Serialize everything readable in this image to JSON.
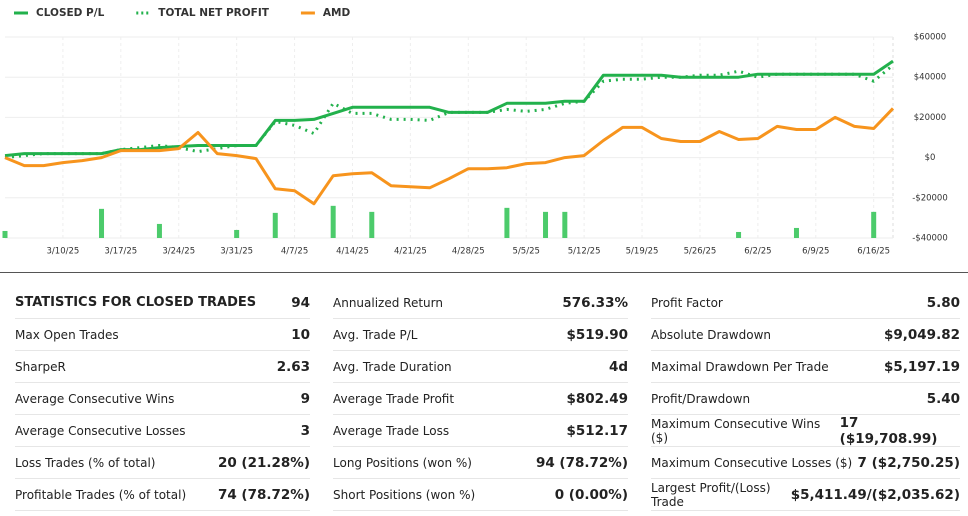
{
  "chart_data": {
    "type": "line",
    "categories": [
      null,
      null,
      null,
      "3/10/25",
      null,
      null,
      "3/17/25",
      null,
      null,
      "3/24/25",
      null,
      null,
      "3/31/25",
      null,
      null,
      "4/7/25",
      null,
      null,
      "4/14/25",
      null,
      null,
      "4/21/25",
      null,
      null,
      "4/28/25",
      null,
      null,
      "5/5/25",
      null,
      null,
      "5/12/25",
      null,
      null,
      "5/19/25",
      null,
      null,
      "5/26/25",
      null,
      null,
      "6/2/25",
      null,
      null,
      "6/9/25",
      null,
      null,
      "6/16/25",
      null
    ],
    "series": [
      {
        "name": "CLOSED P/L",
        "color": "#22b14c",
        "dash": "solid",
        "values": [
          1000,
          2000,
          2000,
          2000,
          2000,
          2000,
          4000,
          4000,
          5000,
          5500,
          6000,
          6000,
          6000,
          6000,
          18500,
          18500,
          19000,
          22000,
          25000,
          25000,
          25000,
          25000,
          25000,
          22500,
          22500,
          22500,
          27000,
          27000,
          27000,
          28000,
          28000,
          41000,
          41000,
          41000,
          41000,
          40000,
          40000,
          40000,
          40000,
          41500,
          41500,
          41500,
          41500,
          41500,
          41500,
          41500,
          48000
        ]
      },
      {
        "name": "TOTAL NET PROFIT",
        "color": "#22b14c",
        "dash": "dotted",
        "values": [
          0,
          1000,
          2000,
          2000,
          2000,
          2000,
          4000,
          5000,
          6000,
          5000,
          3000,
          4500,
          6000,
          6000,
          18000,
          16000,
          12000,
          27000,
          22000,
          22000,
          19000,
          19000,
          18500,
          22500,
          22500,
          22500,
          24000,
          23000,
          24000,
          27000,
          28000,
          38000,
          39000,
          39000,
          40000,
          40000,
          41000,
          41000,
          43000,
          40000,
          41500,
          41500,
          41500,
          41500,
          41500,
          38000,
          46000
        ]
      },
      {
        "name": "AMD",
        "color": "#f7941d",
        "dash": "solid",
        "values": [
          0,
          -4000,
          -4000,
          -2500,
          -1500,
          0,
          3500,
          3500,
          3500,
          4500,
          12500,
          2000,
          1000,
          -500,
          -15500,
          -16500,
          -23000,
          -9000,
          -8000,
          -7500,
          -14000,
          -14500,
          -15000,
          -10500,
          -5500,
          -5500,
          -5000,
          -3000,
          -2500,
          0,
          1000,
          8500,
          15000,
          15000,
          9500,
          8000,
          8000,
          13000,
          9000,
          9500,
          15500,
          14000,
          14000,
          20000,
          15500,
          14500,
          24500
        ]
      },
      {
        "type": "bar",
        "color": "#4ccb6b",
        "values": [
          -36500,
          null,
          null,
          null,
          null,
          -25500,
          null,
          null,
          -33000,
          null,
          null,
          null,
          -36000,
          null,
          -27500,
          null,
          null,
          -24000,
          null,
          -27000,
          null,
          null,
          null,
          null,
          null,
          null,
          -25000,
          null,
          -27000,
          -27000,
          null,
          null,
          null,
          null,
          null,
          null,
          null,
          null,
          -37000,
          null,
          null,
          -35000,
          null,
          null,
          null,
          -27000,
          null
        ]
      }
    ],
    "ylim": [
      -40000,
      60000
    ],
    "yticks": [
      {
        "value": -40000,
        "label": "-$40000"
      },
      {
        "value": -20000,
        "label": "-$20000"
      },
      {
        "value": 0,
        "label": "$0"
      },
      {
        "value": 20000,
        "label": "$20000"
      },
      {
        "value": 40000,
        "label": "$40000"
      },
      {
        "value": 60000,
        "label": "$60000"
      }
    ],
    "grid": true
  },
  "stats": {
    "columns": [
      {
        "rows": [
          [
            "STATISTICS FOR CLOSED TRADES",
            "94"
          ],
          [
            "Max Open Trades",
            "10"
          ],
          [
            "SharpeR",
            "2.63"
          ],
          [
            "Average Consecutive Wins",
            "9"
          ],
          [
            "Average Consecutive Losses",
            "3"
          ],
          [
            "Loss Trades (% of total)",
            "20 (21.28%)"
          ],
          [
            "Profitable Trades (% of total)",
            "74 (78.72%)"
          ]
        ]
      },
      {
        "rows": [
          [
            "Annualized Return",
            "576.33%"
          ],
          [
            "Avg. Trade P/L",
            "$519.90"
          ],
          [
            "Avg. Trade Duration",
            "4d"
          ],
          [
            "Average Trade Profit",
            "$802.49"
          ],
          [
            "Average Trade Loss",
            "$512.17"
          ],
          [
            "Long Positions (won %)",
            "94 (78.72%)"
          ],
          [
            "Short Positions (won %)",
            "0 (0.00%)"
          ]
        ]
      },
      {
        "rows": [
          [
            "Profit Factor",
            "5.80"
          ],
          [
            "Absolute Drawdown",
            "$9,049.82"
          ],
          [
            "Maximal Drawdown Per Trade",
            "$5,197.19"
          ],
          [
            "Profit/Drawdown",
            "5.40"
          ],
          [
            "Maximum Consecutive Wins ($)",
            "17 ($19,708.99)"
          ],
          [
            "Maximum Consecutive Losses ($)",
            "7 ($2,750.25)"
          ],
          [
            "Largest Profit/(Loss) Trade",
            "$5,411.49/($2,035.62)"
          ]
        ]
      }
    ]
  }
}
